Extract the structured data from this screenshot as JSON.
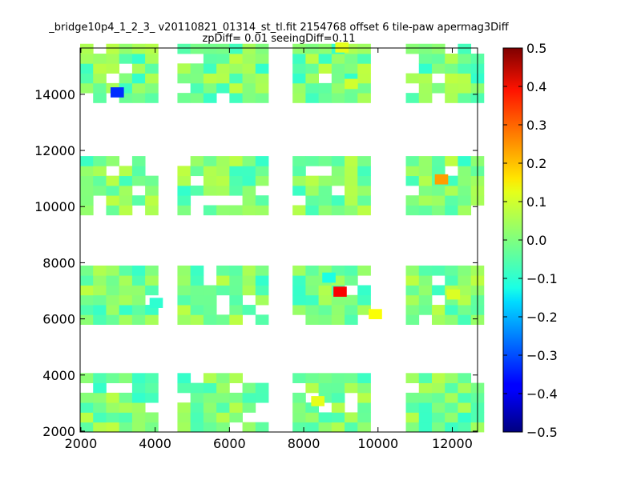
{
  "chart_data": {
    "type": "heatmap",
    "title": "_bridge10p4_1_2_3_ v20110821_01314_st_tl.fit 2154768 offset 6 tile-paw apermag3Diff",
    "subtitle": "zpDiff= 0.01 seeingDiff=0.11",
    "xlabel": "",
    "ylabel": "",
    "xlim": [
      1980,
      12680
    ],
    "ylim": [
      1970,
      15650
    ],
    "x_ticks": [
      "2000",
      "4000",
      "6000",
      "8000",
      "10000",
      "12000"
    ],
    "y_ticks": [
      "2000",
      "4000",
      "6000",
      "8000",
      "10000",
      "12000",
      "14000"
    ],
    "grid": false,
    "legend": "none",
    "cell_size": [
      350,
      350
    ],
    "colorbar": {
      "colormap": "jet",
      "range": [
        -0.5,
        0.5
      ],
      "ticks": [
        "0.5",
        "0.4",
        "0.3",
        "0.2",
        "0.1",
        "0.0",
        "−0.1",
        "−0.2",
        "−0.3",
        "−0.4",
        "−0.5"
      ]
    },
    "columns": [
      {
        "x0": 1980,
        "n": 6
      },
      {
        "x0": 4600,
        "n": 7
      },
      {
        "x0": 7700,
        "n": 6
      },
      {
        "x0": 10750,
        "n": 6
      }
    ],
    "bands": [
      {
        "y0": 13700,
        "n": 6
      },
      {
        "y0": 9700,
        "n": 6
      },
      {
        "y0": 5800,
        "n": 6
      },
      {
        "y0": 1970,
        "n": 6
      }
    ],
    "outliers": [
      {
        "x": 2800,
        "y": 13900,
        "value": -0.33
      },
      {
        "x": 11530,
        "y": 10800,
        "value": 0.22
      },
      {
        "x": 8800,
        "y": 6800,
        "value": 0.38
      },
      {
        "x": 9750,
        "y": 6000,
        "value": 0.12
      },
      {
        "x": 8500,
        "y": 7300,
        "value": -0.1
      },
      {
        "x": 3850,
        "y": 6400,
        "value": -0.08
      },
      {
        "x": 9100,
        "y": 14200,
        "value": 0.08
      },
      {
        "x": 8200,
        "y": 2900,
        "value": 0.1
      },
      {
        "x": 11850,
        "y": 6700,
        "value": 0.09
      },
      {
        "x": 8850,
        "y": 15500,
        "value": 0.1
      }
    ]
  }
}
